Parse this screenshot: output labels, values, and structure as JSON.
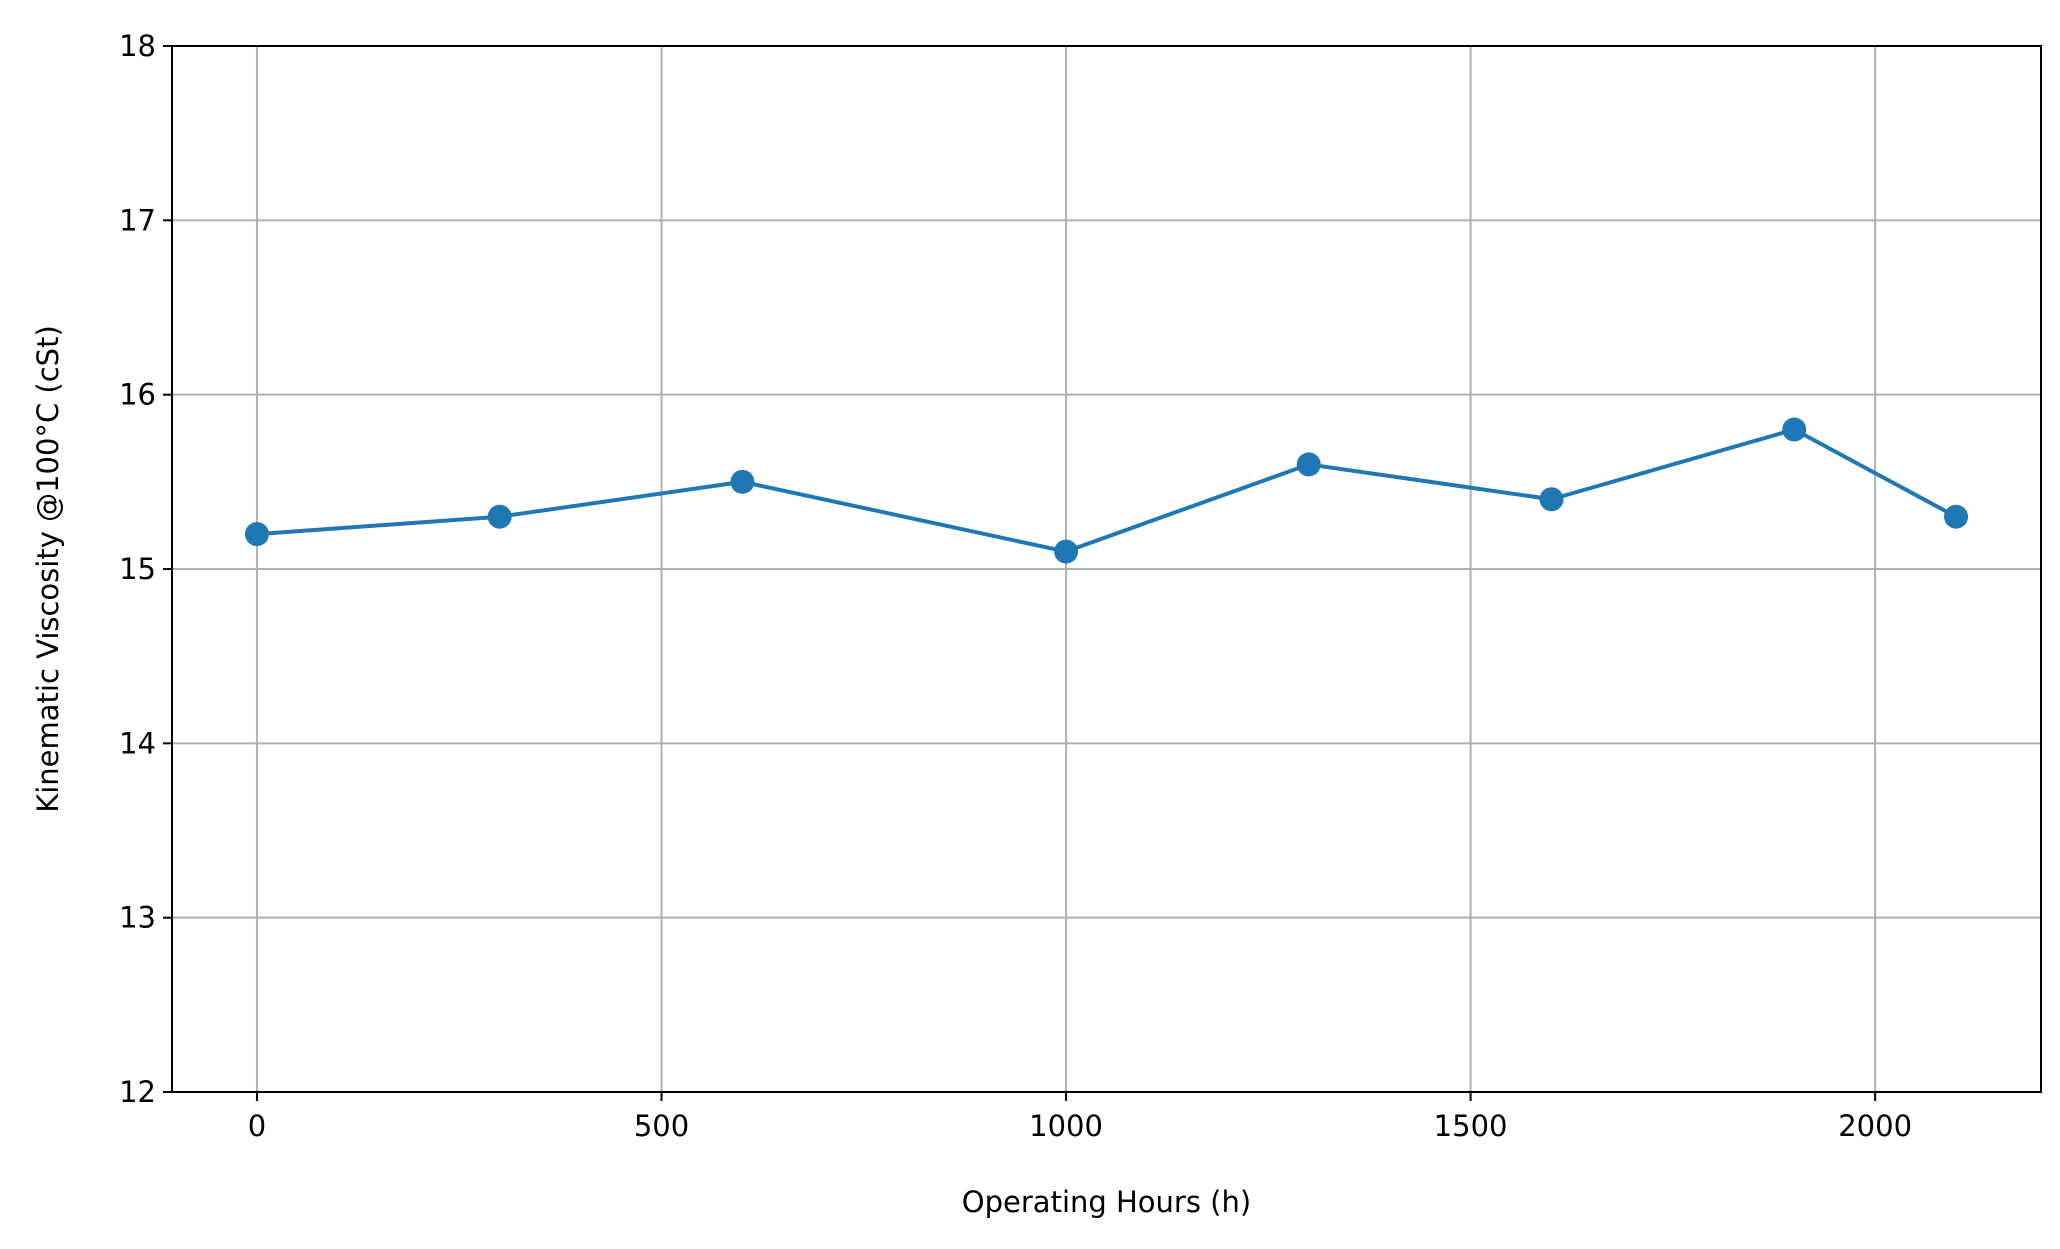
{
  "chart_data": {
    "type": "line",
    "title": "",
    "xlabel": "Operating Hours (h)",
    "ylabel": "Kinematic Viscosity @100°C (cSt)",
    "xlim": [
      -105,
      2205
    ],
    "ylim": [
      12,
      18
    ],
    "xticks": [
      0,
      500,
      1000,
      1500,
      2000
    ],
    "xtick_labels": [
      "0",
      "500",
      "1000",
      "1500",
      "2000"
    ],
    "yticks": [
      12,
      13,
      14,
      15,
      16,
      17,
      18
    ],
    "ytick_labels": [
      "12",
      "13",
      "14",
      "15",
      "16",
      "17",
      "18"
    ],
    "grid": true,
    "series": [
      {
        "color": "#1f77b4",
        "marker": "circle",
        "x": [
          0,
          300,
          600,
          1000,
          1300,
          1600,
          1900,
          2100
        ],
        "y": [
          15.2,
          15.3,
          15.5,
          15.1,
          15.6,
          15.4,
          15.8,
          15.3
        ]
      }
    ]
  }
}
